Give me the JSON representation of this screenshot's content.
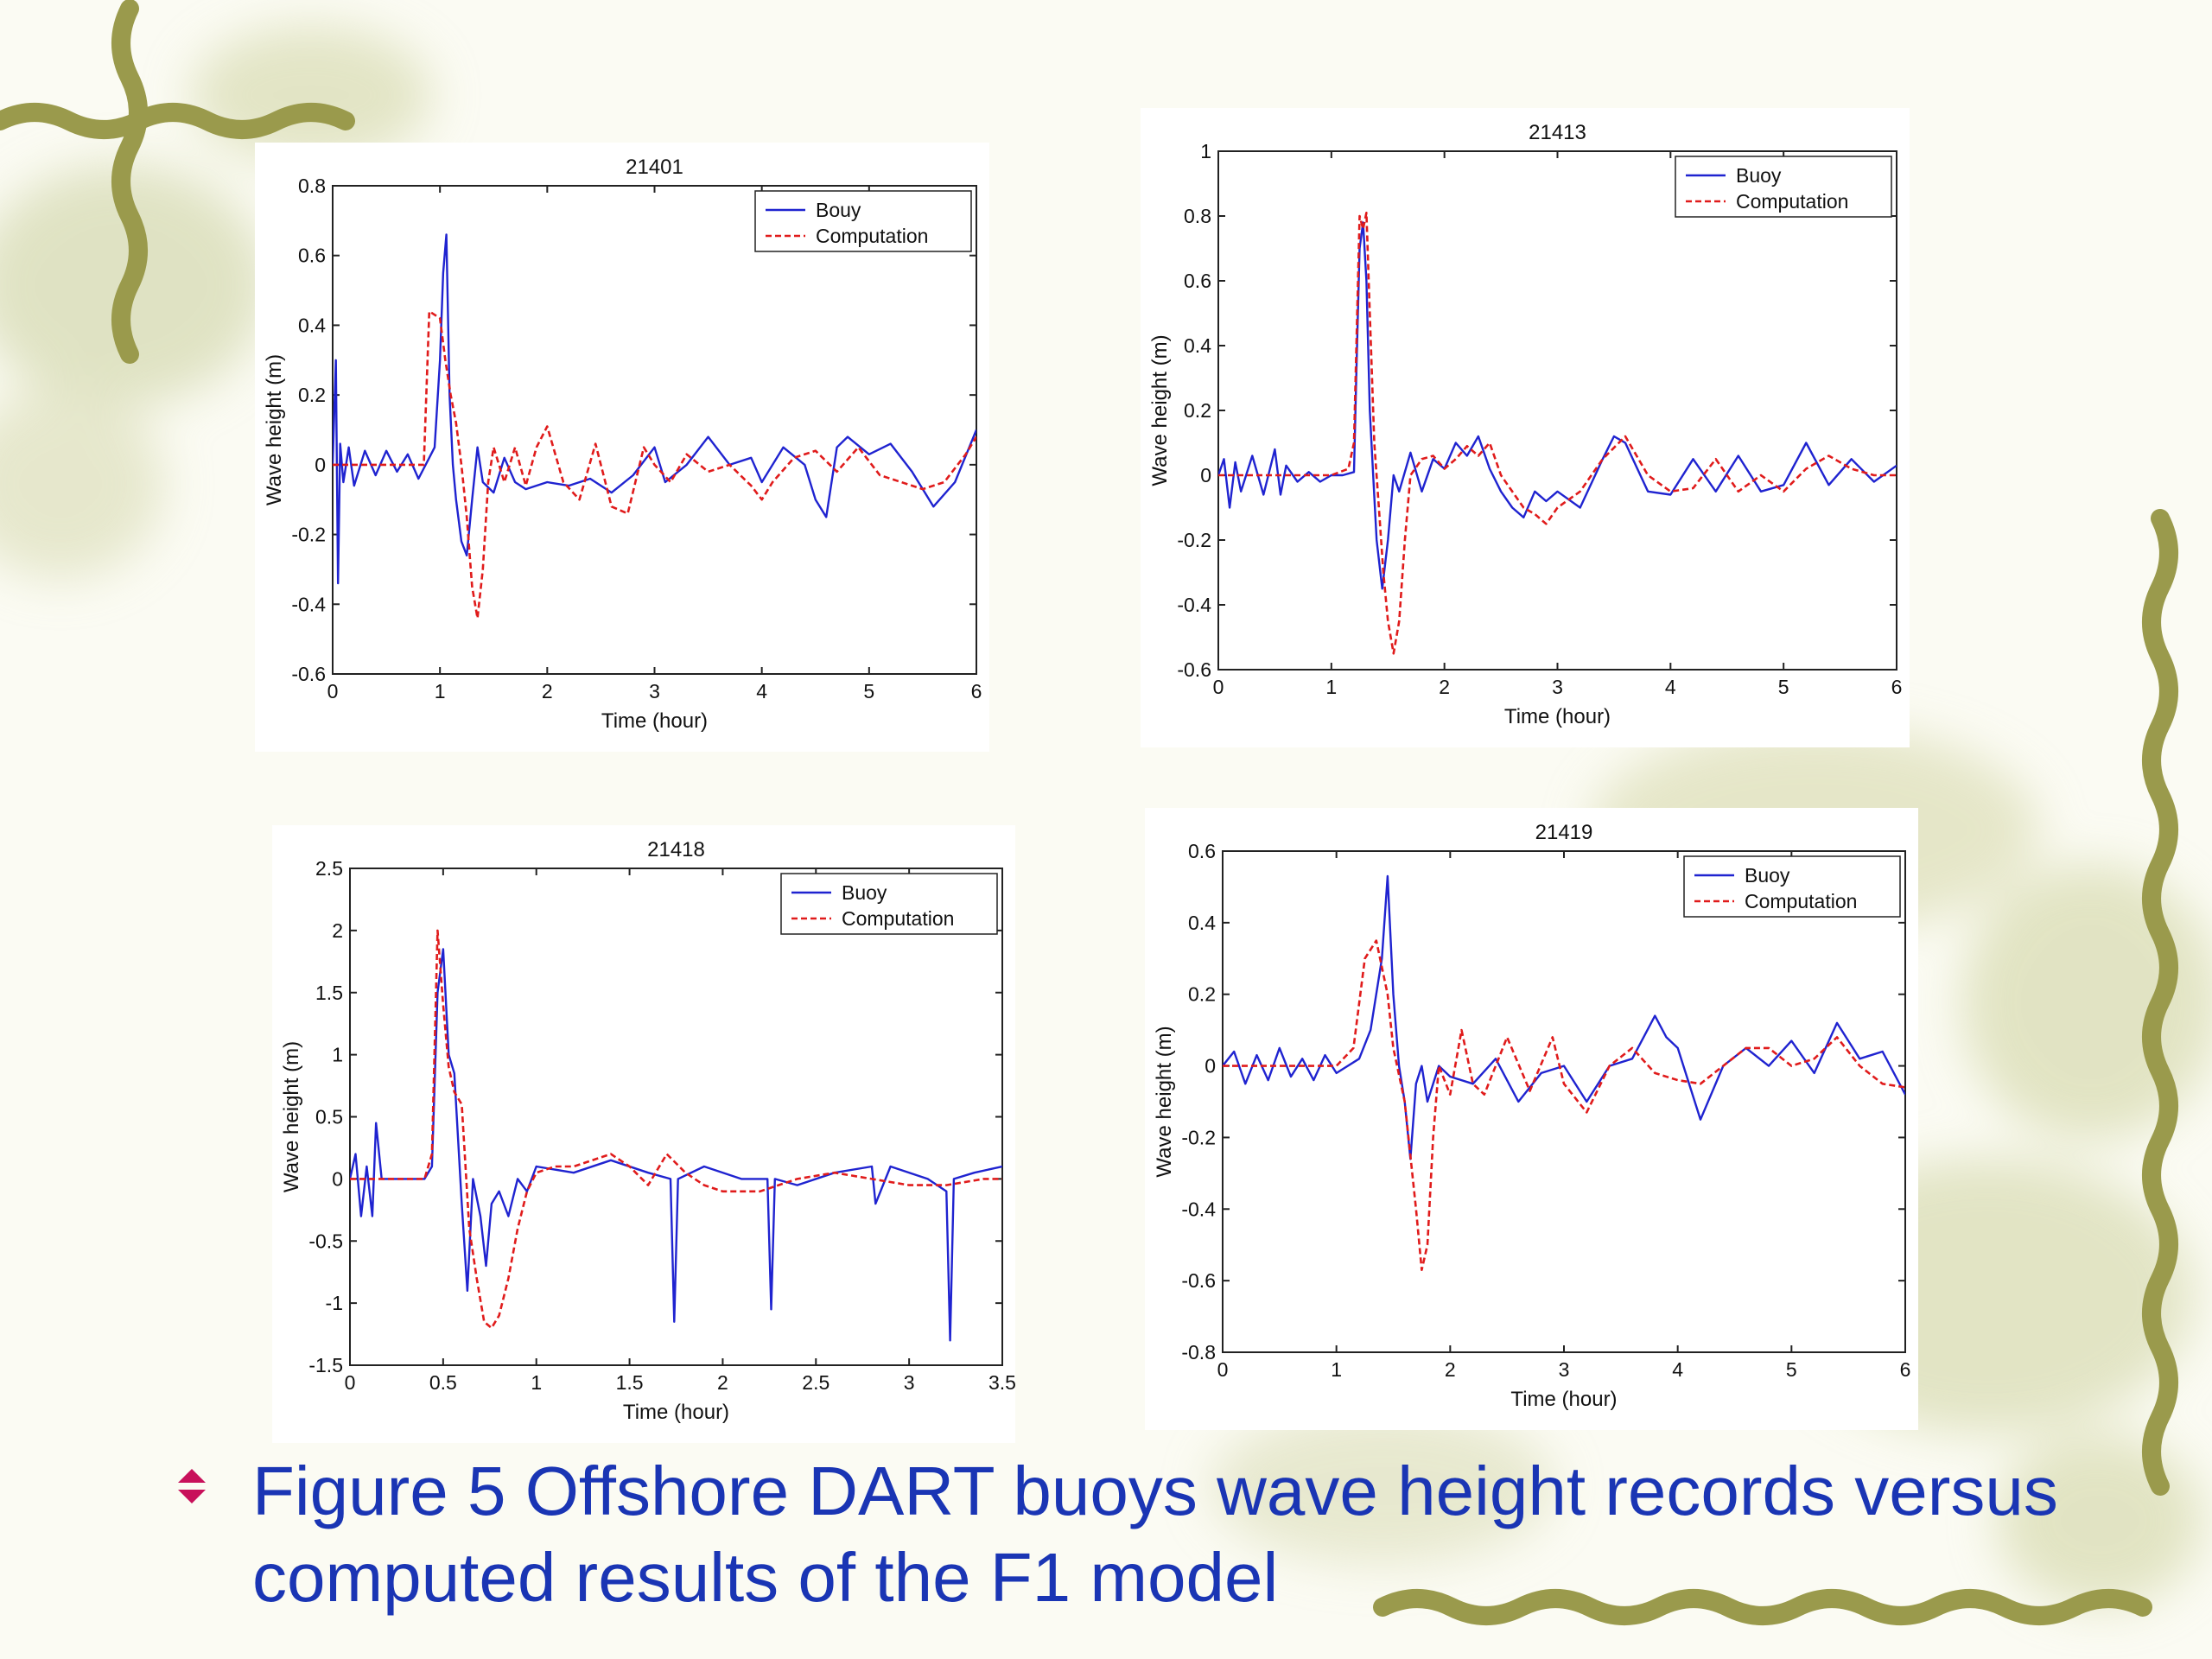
{
  "caption": {
    "text": "Figure 5 Offshore DART buoys wave height records versus computed results of the F1 model"
  },
  "colors": {
    "buoy": "#1f23d0",
    "computation": "#e01b1b",
    "caption": "#1a35b4",
    "bullet": "#c8105a",
    "vine": "#9a9a4c"
  },
  "chart_data": [
    {
      "type": "line",
      "title": "21401",
      "xlabel": "Time (hour)",
      "ylabel": "Wave height (m)",
      "xlim": [
        0,
        6
      ],
      "ylim": [
        -0.6,
        0.8
      ],
      "xticks": [
        0,
        1,
        2,
        3,
        4,
        5,
        6
      ],
      "yticks": [
        -0.6,
        -0.4,
        -0.2,
        0,
        0.2,
        0.4,
        0.6,
        0.8
      ],
      "xtick_labels": [
        "0",
        "1",
        "2",
        "3",
        "4",
        "5",
        "6"
      ],
      "ytick_labels": [
        "-0.6",
        "-0.4",
        "-0.2",
        "0",
        "0.2",
        "0.4",
        "0.6",
        "0.8"
      ],
      "legend": {
        "placement": "top-right",
        "entries": [
          "Bouy",
          "Computation"
        ]
      },
      "series": [
        {
          "name": "Bouy",
          "style": "solid",
          "x": [
            0,
            0.03,
            0.05,
            0.07,
            0.1,
            0.15,
            0.2,
            0.3,
            0.4,
            0.5,
            0.6,
            0.7,
            0.8,
            0.9,
            0.95,
            1.0,
            1.03,
            1.06,
            1.09,
            1.12,
            1.15,
            1.2,
            1.25,
            1.3,
            1.35,
            1.4,
            1.5,
            1.6,
            1.7,
            1.8,
            2.0,
            2.2,
            2.4,
            2.6,
            2.8,
            3.0,
            3.1,
            3.3,
            3.5,
            3.7,
            3.9,
            4.0,
            4.2,
            4.4,
            4.5,
            4.6,
            4.7,
            4.8,
            5.0,
            5.2,
            5.4,
            5.6,
            5.8,
            6.0
          ],
          "y": [
            0,
            0.3,
            -0.34,
            0.06,
            -0.05,
            0.05,
            -0.06,
            0.04,
            -0.03,
            0.04,
            -0.02,
            0.03,
            -0.04,
            0.02,
            0.05,
            0.3,
            0.55,
            0.66,
            0.2,
            0.0,
            -0.1,
            -0.22,
            -0.26,
            -0.1,
            0.05,
            -0.05,
            -0.08,
            0.02,
            -0.05,
            -0.07,
            -0.05,
            -0.06,
            -0.04,
            -0.08,
            -0.03,
            0.05,
            -0.05,
            0.0,
            0.08,
            0.0,
            0.02,
            -0.05,
            0.05,
            0.0,
            -0.1,
            -0.15,
            0.05,
            0.08,
            0.03,
            0.06,
            -0.02,
            -0.12,
            -0.05,
            0.1
          ]
        },
        {
          "name": "Computation",
          "style": "dashed",
          "x": [
            0,
            0.5,
            0.85,
            0.9,
            0.95,
            1.0,
            1.05,
            1.1,
            1.15,
            1.2,
            1.25,
            1.3,
            1.35,
            1.4,
            1.45,
            1.5,
            1.6,
            1.7,
            1.8,
            1.9,
            2.0,
            2.15,
            2.3,
            2.45,
            2.6,
            2.75,
            2.9,
            3.0,
            3.15,
            3.3,
            3.5,
            3.7,
            3.9,
            4.0,
            4.1,
            4.3,
            4.5,
            4.7,
            4.9,
            5.1,
            5.3,
            5.5,
            5.7,
            5.9,
            6.0
          ],
          "y": [
            0,
            0,
            0.0,
            0.44,
            0.43,
            0.42,
            0.3,
            0.2,
            0.12,
            0.0,
            -0.15,
            -0.35,
            -0.44,
            -0.3,
            -0.05,
            0.05,
            -0.05,
            0.05,
            -0.06,
            0.05,
            0.11,
            -0.05,
            -0.1,
            0.06,
            -0.12,
            -0.14,
            0.05,
            0.0,
            -0.05,
            0.03,
            -0.02,
            0.0,
            -0.06,
            -0.1,
            -0.05,
            0.02,
            0.04,
            -0.02,
            0.05,
            -0.03,
            -0.05,
            -0.07,
            -0.05,
            0.03,
            0.08
          ]
        }
      ]
    },
    {
      "type": "line",
      "title": "21413",
      "xlabel": "Time (hour)",
      "ylabel": "Wave height (m)",
      "xlim": [
        0,
        6
      ],
      "ylim": [
        -0.6,
        1
      ],
      "xticks": [
        0,
        1,
        2,
        3,
        4,
        5,
        6
      ],
      "yticks": [
        -0.6,
        -0.4,
        -0.2,
        0,
        0.2,
        0.4,
        0.6,
        0.8,
        1
      ],
      "xtick_labels": [
        "0",
        "1",
        "2",
        "3",
        "4",
        "5",
        "6"
      ],
      "ytick_labels": [
        "-0.6",
        "-0.4",
        "-0.2",
        "0",
        "0.2",
        "0.4",
        "0.6",
        "0.8",
        "1"
      ],
      "legend": {
        "placement": "top-right",
        "entries": [
          "Buoy",
          "Computation"
        ]
      },
      "series": [
        {
          "name": "Buoy",
          "style": "solid",
          "x": [
            0,
            0.05,
            0.1,
            0.15,
            0.2,
            0.3,
            0.4,
            0.5,
            0.55,
            0.6,
            0.7,
            0.8,
            0.9,
            1.0,
            1.1,
            1.2,
            1.22,
            1.25,
            1.28,
            1.31,
            1.34,
            1.37,
            1.4,
            1.45,
            1.5,
            1.55,
            1.6,
            1.7,
            1.8,
            1.9,
            2.0,
            2.1,
            2.2,
            2.3,
            2.4,
            2.5,
            2.6,
            2.7,
            2.8,
            2.9,
            3.0,
            3.2,
            3.4,
            3.5,
            3.6,
            3.8,
            4.0,
            4.2,
            4.4,
            4.6,
            4.8,
            5.0,
            5.2,
            5.4,
            5.6,
            5.8,
            6.0
          ],
          "y": [
            0,
            0.05,
            -0.1,
            0.04,
            -0.05,
            0.06,
            -0.06,
            0.08,
            -0.06,
            0.03,
            -0.02,
            0.01,
            -0.02,
            0.0,
            0.0,
            0.01,
            0.3,
            0.7,
            0.78,
            0.6,
            0.2,
            0.0,
            -0.2,
            -0.35,
            -0.2,
            0.0,
            -0.05,
            0.07,
            -0.05,
            0.05,
            0.02,
            0.1,
            0.06,
            0.12,
            0.02,
            -0.05,
            -0.1,
            -0.13,
            -0.05,
            -0.08,
            -0.05,
            -0.1,
            0.05,
            0.12,
            0.1,
            -0.05,
            -0.06,
            0.05,
            -0.05,
            0.06,
            -0.05,
            -0.03,
            0.1,
            -0.03,
            0.05,
            -0.02,
            0.03
          ]
        },
        {
          "name": "Computation",
          "style": "dashed",
          "x": [
            0,
            0.5,
            1.0,
            1.15,
            1.2,
            1.25,
            1.28,
            1.31,
            1.34,
            1.38,
            1.42,
            1.46,
            1.5,
            1.55,
            1.6,
            1.65,
            1.7,
            1.8,
            1.9,
            2.0,
            2.1,
            2.2,
            2.3,
            2.4,
            2.5,
            2.6,
            2.7,
            2.8,
            2.9,
            3.0,
            3.2,
            3.4,
            3.6,
            3.8,
            4.0,
            4.2,
            4.4,
            4.6,
            4.8,
            5.0,
            5.2,
            5.4,
            5.6,
            5.8,
            6.0
          ],
          "y": [
            0,
            0,
            0.0,
            0.02,
            0.1,
            0.8,
            0.76,
            0.81,
            0.5,
            0.1,
            -0.1,
            -0.3,
            -0.45,
            -0.55,
            -0.45,
            -0.2,
            0.0,
            0.05,
            0.06,
            0.02,
            0.05,
            0.09,
            0.06,
            0.1,
            0.0,
            -0.05,
            -0.1,
            -0.12,
            -0.15,
            -0.1,
            -0.05,
            0.05,
            0.12,
            0.0,
            -0.05,
            -0.04,
            0.05,
            -0.05,
            0.0,
            -0.05,
            0.02,
            0.06,
            0.02,
            0.0,
            0.0
          ]
        }
      ]
    },
    {
      "type": "line",
      "title": "21418",
      "xlabel": "Time (hour)",
      "ylabel": "Wave height (m)",
      "xlim": [
        0,
        3.5
      ],
      "ylim": [
        -1.5,
        2.5
      ],
      "xticks": [
        0,
        0.5,
        1,
        1.5,
        2,
        2.5,
        3,
        3.5
      ],
      "yticks": [
        -1.5,
        -1,
        -0.5,
        0,
        0.5,
        1,
        1.5,
        2,
        2.5
      ],
      "xtick_labels": [
        "0",
        "0.5",
        "1",
        "1.5",
        "2",
        "2.5",
        "3",
        "3.5"
      ],
      "ytick_labels": [
        "-1.5",
        "-1",
        "-0.5",
        "0",
        "0.5",
        "1",
        "1.5",
        "2",
        "2.5"
      ],
      "legend": {
        "placement": "top-right",
        "entries": [
          "Buoy",
          "Computation"
        ]
      },
      "series": [
        {
          "name": "Buoy",
          "style": "solid",
          "x": [
            0,
            0.03,
            0.06,
            0.09,
            0.12,
            0.14,
            0.17,
            0.2,
            0.3,
            0.4,
            0.44,
            0.47,
            0.5,
            0.53,
            0.56,
            0.6,
            0.63,
            0.66,
            0.7,
            0.73,
            0.76,
            0.8,
            0.85,
            0.9,
            0.95,
            1.0,
            1.2,
            1.4,
            1.6,
            1.72,
            1.74,
            1.76,
            1.9,
            2.1,
            2.24,
            2.26,
            2.28,
            2.4,
            2.6,
            2.8,
            2.82,
            2.9,
            3.1,
            3.2,
            3.22,
            3.24,
            3.35,
            3.5
          ],
          "y": [
            0,
            0.2,
            -0.3,
            0.1,
            -0.3,
            0.45,
            0.0,
            0.0,
            0.0,
            0.0,
            0.1,
            1.5,
            1.85,
            1.0,
            0.85,
            -0.2,
            -0.9,
            0.0,
            -0.3,
            -0.7,
            -0.2,
            -0.1,
            -0.3,
            0.0,
            -0.1,
            0.1,
            0.05,
            0.15,
            0.05,
            0.0,
            -1.15,
            0.0,
            0.1,
            0.0,
            0.0,
            -1.05,
            0.0,
            -0.05,
            0.05,
            0.1,
            -0.2,
            0.1,
            0.0,
            -0.1,
            -1.3,
            0.0,
            0.05,
            0.1
          ]
        },
        {
          "name": "Computation",
          "style": "dashed",
          "x": [
            0,
            0.2,
            0.4,
            0.44,
            0.47,
            0.5,
            0.53,
            0.56,
            0.6,
            0.64,
            0.68,
            0.72,
            0.76,
            0.8,
            0.85,
            0.9,
            0.95,
            1.0,
            1.1,
            1.2,
            1.3,
            1.4,
            1.5,
            1.6,
            1.7,
            1.8,
            1.9,
            2.0,
            2.2,
            2.4,
            2.6,
            2.8,
            3.0,
            3.2,
            3.4,
            3.5
          ],
          "y": [
            0,
            0,
            0.0,
            0.2,
            2.0,
            1.4,
            0.9,
            0.7,
            0.6,
            -0.4,
            -0.8,
            -1.15,
            -1.2,
            -1.1,
            -0.8,
            -0.4,
            -0.1,
            0.05,
            0.1,
            0.1,
            0.15,
            0.2,
            0.1,
            -0.05,
            0.2,
            0.05,
            -0.05,
            -0.1,
            -0.1,
            0.0,
            0.05,
            0.0,
            -0.05,
            -0.05,
            0.0,
            0.0
          ]
        }
      ]
    },
    {
      "type": "line",
      "title": "21419",
      "xlabel": "Time (hour)",
      "ylabel": "Wave height (m)",
      "xlim": [
        0,
        6
      ],
      "ylim": [
        -0.8,
        0.6
      ],
      "xticks": [
        0,
        1,
        2,
        3,
        4,
        5,
        6
      ],
      "yticks": [
        -0.8,
        -0.6,
        -0.4,
        -0.2,
        0,
        0.2,
        0.4,
        0.6
      ],
      "xtick_labels": [
        "0",
        "1",
        "2",
        "3",
        "4",
        "5",
        "6"
      ],
      "ytick_labels": [
        "-0.8",
        "-0.6",
        "-0.4",
        "-0.2",
        "0",
        "0.2",
        "0.4",
        "0.6"
      ],
      "legend": {
        "placement": "top-right",
        "entries": [
          "Buoy",
          "Computation"
        ]
      },
      "series": [
        {
          "name": "Buoy",
          "style": "solid",
          "x": [
            0,
            0.1,
            0.2,
            0.3,
            0.4,
            0.5,
            0.6,
            0.7,
            0.8,
            0.9,
            1.0,
            1.1,
            1.2,
            1.3,
            1.4,
            1.45,
            1.5,
            1.55,
            1.6,
            1.65,
            1.7,
            1.75,
            1.8,
            1.9,
            2.0,
            2.2,
            2.4,
            2.6,
            2.8,
            3.0,
            3.2,
            3.4,
            3.6,
            3.8,
            3.9,
            4.0,
            4.2,
            4.4,
            4.6,
            4.8,
            5.0,
            5.2,
            5.4,
            5.6,
            5.8,
            6.0
          ],
          "y": [
            0,
            0.04,
            -0.05,
            0.03,
            -0.04,
            0.05,
            -0.03,
            0.02,
            -0.04,
            0.03,
            -0.02,
            0.0,
            0.02,
            0.1,
            0.3,
            0.53,
            0.2,
            0.0,
            -0.1,
            -0.26,
            -0.05,
            0.0,
            -0.1,
            0.0,
            -0.03,
            -0.05,
            0.02,
            -0.1,
            -0.02,
            0.0,
            -0.1,
            0.0,
            0.02,
            0.14,
            0.08,
            0.05,
            -0.15,
            0.0,
            0.05,
            0.0,
            0.07,
            -0.02,
            0.12,
            0.02,
            0.04,
            -0.08
          ]
        },
        {
          "name": "Computation",
          "style": "dashed",
          "x": [
            0,
            0.5,
            1.0,
            1.15,
            1.25,
            1.35,
            1.45,
            1.5,
            1.6,
            1.7,
            1.75,
            1.8,
            1.85,
            1.9,
            2.0,
            2.1,
            2.2,
            2.3,
            2.5,
            2.7,
            2.9,
            3.0,
            3.2,
            3.4,
            3.6,
            3.8,
            4.0,
            4.2,
            4.4,
            4.6,
            4.8,
            5.0,
            5.2,
            5.4,
            5.6,
            5.8,
            6.0
          ],
          "y": [
            0,
            0,
            0.0,
            0.05,
            0.3,
            0.35,
            0.2,
            0.05,
            -0.1,
            -0.4,
            -0.57,
            -0.5,
            -0.2,
            0.0,
            -0.08,
            0.1,
            -0.05,
            -0.08,
            0.08,
            -0.07,
            0.08,
            -0.05,
            -0.13,
            0.0,
            0.05,
            -0.02,
            -0.04,
            -0.05,
            0.0,
            0.05,
            0.05,
            0.0,
            0.02,
            0.08,
            0.0,
            -0.05,
            -0.06
          ]
        }
      ]
    }
  ]
}
